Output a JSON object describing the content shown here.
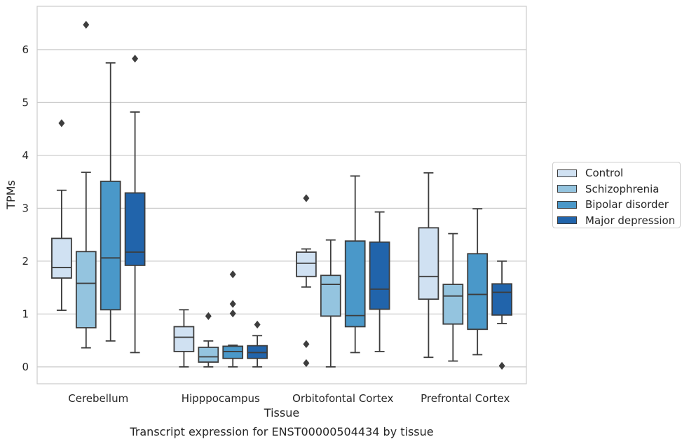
{
  "chart_data": {
    "type": "box",
    "title": "Transcript expression for ENST00000504434 by tissue",
    "xlabel": "Tissue",
    "ylabel": "TPMs",
    "ylim": [
      -0.32,
      6.82
    ],
    "yticks": [
      0,
      1,
      2,
      3,
      4,
      5,
      6
    ],
    "grid": "horizontal",
    "legend_position": "right",
    "categories": [
      "Cerebellum",
      "Hipppocampus",
      "Orbitofontal Cortex",
      "Prefrontal Cortex"
    ],
    "series": [
      {
        "name": "Control",
        "color": "#d0e1f2",
        "boxes": [
          {
            "whislo": 1.07,
            "q1": 1.68,
            "med": 1.88,
            "q3": 2.43,
            "whishi": 3.34,
            "fliers": [
              4.61
            ]
          },
          {
            "whislo": 0.0,
            "q1": 0.29,
            "med": 0.56,
            "q3": 0.76,
            "whishi": 1.08,
            "fliers": []
          },
          {
            "whislo": 1.51,
            "q1": 1.71,
            "med": 1.96,
            "q3": 2.17,
            "whishi": 2.23,
            "fliers": [
              3.19,
              0.43,
              0.07
            ]
          },
          {
            "whislo": 0.18,
            "q1": 1.28,
            "med": 1.71,
            "q3": 2.63,
            "whishi": 3.67,
            "fliers": []
          }
        ]
      },
      {
        "name": "Schizophrenia",
        "color": "#94c4df",
        "boxes": [
          {
            "whislo": 0.36,
            "q1": 0.74,
            "med": 1.58,
            "q3": 2.18,
            "whishi": 3.68,
            "fliers": [
              6.47
            ]
          },
          {
            "whislo": 0.0,
            "q1": 0.09,
            "med": 0.19,
            "q3": 0.37,
            "whishi": 0.49,
            "fliers": [
              0.96
            ]
          },
          {
            "whislo": 0.0,
            "q1": 0.96,
            "med": 1.56,
            "q3": 1.73,
            "whishi": 2.4,
            "fliers": []
          },
          {
            "whislo": 0.11,
            "q1": 0.81,
            "med": 1.34,
            "q3": 1.56,
            "whishi": 2.52,
            "fliers": []
          }
        ]
      },
      {
        "name": "Bipolar disorder",
        "color": "#4a98c9",
        "boxes": [
          {
            "whislo": 0.49,
            "q1": 1.08,
            "med": 2.06,
            "q3": 3.51,
            "whishi": 5.75,
            "fliers": []
          },
          {
            "whislo": 0.0,
            "q1": 0.16,
            "med": 0.29,
            "q3": 0.39,
            "whishi": 0.41,
            "fliers": [
              1.75,
              1.19,
              1.01
            ]
          },
          {
            "whislo": 0.27,
            "q1": 0.76,
            "med": 0.97,
            "q3": 2.38,
            "whishi": 3.61,
            "fliers": []
          },
          {
            "whislo": 0.23,
            "q1": 0.71,
            "med": 1.37,
            "q3": 2.14,
            "whishi": 2.99,
            "fliers": []
          }
        ]
      },
      {
        "name": "Major depression",
        "color": "#2164ab",
        "boxes": [
          {
            "whislo": 0.27,
            "q1": 1.92,
            "med": 2.17,
            "q3": 3.29,
            "whishi": 4.82,
            "fliers": [
              5.83
            ]
          },
          {
            "whislo": 0.0,
            "q1": 0.16,
            "med": 0.27,
            "q3": 0.4,
            "whishi": 0.59,
            "fliers": [
              0.8
            ]
          },
          {
            "whislo": 0.29,
            "q1": 1.09,
            "med": 1.47,
            "q3": 2.36,
            "whishi": 2.93,
            "fliers": []
          },
          {
            "whislo": 0.82,
            "q1": 0.98,
            "med": 1.41,
            "q3": 1.57,
            "whishi": 2.0,
            "fliers": [
              0.02
            ]
          }
        ]
      }
    ]
  }
}
